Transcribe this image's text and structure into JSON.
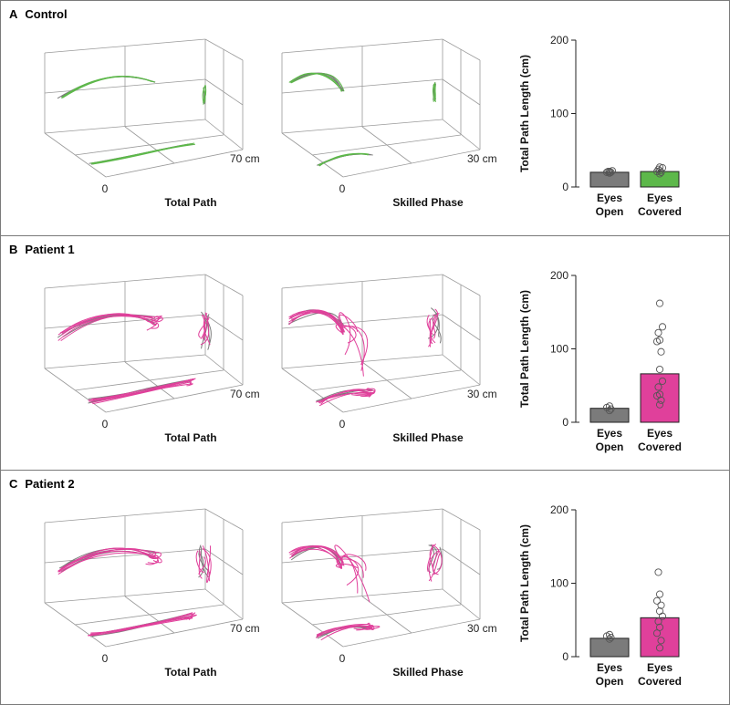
{
  "colors": {
    "gray": "#7b7b7b",
    "green": "#5db84a",
    "pink": "#e0409b",
    "grid": "#9a9a9a"
  },
  "chart_data": [
    {
      "type": "bar",
      "panel_letter": "A",
      "panel_title": "Control",
      "cube_captions": [
        "Total Path",
        "Skilled Phase"
      ],
      "cube_scales": [
        {
          "origin": "0",
          "end": "70 cm"
        },
        {
          "origin": "0",
          "end": "30 cm"
        }
      ],
      "trace_color": "green",
      "ylabel": "Total Path Length (cm)",
      "ylim": [
        0,
        200
      ],
      "yticks": [
        0,
        100,
        200
      ],
      "categories": [
        [
          "Eyes",
          "Open"
        ],
        [
          "Eyes",
          "Covered"
        ]
      ],
      "values": [
        20,
        21
      ],
      "points": [
        [
          19,
          20,
          20,
          21,
          21,
          22
        ],
        [
          18,
          20,
          21,
          22,
          24,
          26,
          27
        ]
      ],
      "bar_colors": [
        "gray",
        "green"
      ]
    },
    {
      "type": "bar",
      "panel_letter": "B",
      "panel_title": "Patient 1",
      "cube_captions": [
        "Total Path",
        "Skilled Phase"
      ],
      "cube_scales": [
        {
          "origin": "0",
          "end": "70 cm"
        },
        {
          "origin": "0",
          "end": "30 cm"
        }
      ],
      "trace_color": "pink",
      "ylabel": "Total Path Length (cm)",
      "ylim": [
        0,
        200
      ],
      "yticks": [
        0,
        100,
        200
      ],
      "categories": [
        [
          "Eyes",
          "Open"
        ],
        [
          "Eyes",
          "Covered"
        ]
      ],
      "values": [
        19,
        66
      ],
      "points": [
        [
          16,
          18,
          20,
          22
        ],
        [
          24,
          30,
          36,
          38,
          48,
          56,
          72,
          96,
          110,
          112,
          122,
          130,
          162
        ]
      ],
      "bar_colors": [
        "gray",
        "pink"
      ]
    },
    {
      "type": "bar",
      "panel_letter": "C",
      "panel_title": "Patient 2",
      "cube_captions": [
        "Total Path",
        "Skilled Phase"
      ],
      "cube_scales": [
        {
          "origin": "0",
          "end": "70 cm"
        },
        {
          "origin": "0",
          "end": "30 cm"
        }
      ],
      "trace_color": "pink",
      "ylabel": "Total Path Length (cm)",
      "ylim": [
        0,
        200
      ],
      "yticks": [
        0,
        100,
        200
      ],
      "categories": [
        [
          "Eyes",
          "Open"
        ],
        [
          "Eyes",
          "Covered"
        ]
      ],
      "values": [
        25,
        53
      ],
      "points": [
        [
          24,
          26,
          28,
          30
        ],
        [
          12,
          22,
          32,
          40,
          48,
          55,
          62,
          70,
          76,
          85,
          115
        ]
      ],
      "bar_colors": [
        "gray",
        "pink"
      ]
    }
  ]
}
